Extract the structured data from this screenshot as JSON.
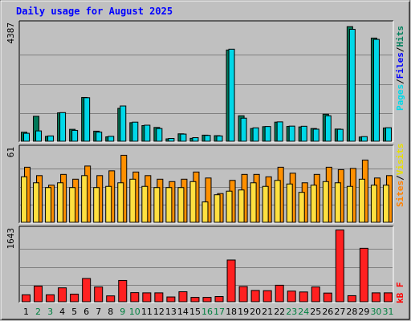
{
  "chart_data": {
    "type": "bar",
    "title": "Daily usage for August 2025",
    "categories": [
      "1",
      "2",
      "3",
      "4",
      "5",
      "6",
      "7",
      "8",
      "9",
      "10",
      "11",
      "12",
      "13",
      "14",
      "15",
      "16",
      "17",
      "18",
      "19",
      "20",
      "21",
      "22",
      "23",
      "24",
      "25",
      "26",
      "27",
      "28",
      "29",
      "30",
      "31"
    ],
    "weekend_days": [
      "2",
      "3",
      "9",
      "10",
      "16",
      "17",
      "23",
      "24",
      "30",
      "31"
    ],
    "colors": {
      "background": "#c0c0c0",
      "title": "#0000ff",
      "pages": "#00805c",
      "files": "#0000ff",
      "hits": "#00805c",
      "hits_bar": "#00d8e8",
      "pages_bar": "#007858",
      "visits": "#e8e000",
      "visits_bar": "#ffe040",
      "sites": "#ff8000",
      "sites_bar": "#ff9000",
      "kb": "#ff0000",
      "kb_bar": "#ff2020",
      "weekday_tick": "#000000",
      "weekend_tick": "#008040"
    },
    "panels": [
      {
        "id": "hits",
        "ymax_label": "4387",
        "ylim": [
          0,
          4387
        ],
        "legend": [
          "Pages",
          "/",
          "Files",
          "/",
          "Hits"
        ],
        "series": [
          {
            "name": "Hits",
            "values": [
              300,
              390,
              200,
              1080,
              410,
              1640,
              345,
              185,
              1330,
              720,
              605,
              480,
              105,
              270,
              135,
              220,
              200,
              3470,
              870,
              505,
              555,
              730,
              570,
              565,
              455,
              960,
              450,
              4220,
              175,
              3840,
              510
            ]
          },
          {
            "name": "Files",
            "values": [
              300,
              370,
              200,
              1030,
              390,
              1600,
              330,
              185,
              1260,
              680,
              580,
              465,
              100,
              255,
              130,
              210,
              195,
              3330,
              830,
              490,
              540,
              700,
              550,
              545,
              440,
              930,
              435,
              4050,
              170,
              3700,
              490
            ]
          },
          {
            "name": "Pages",
            "values": [
              340,
              940,
              185,
              1070,
              450,
              1650,
              380,
              165,
              1240,
              700,
              590,
              520,
              90,
              280,
              110,
              230,
              210,
              3440,
              960,
              480,
              550,
              720,
              560,
              540,
              480,
              1020,
              460,
              4320,
              160,
              3890,
              500
            ]
          }
        ]
      },
      {
        "id": "visits",
        "ymax_label": "61",
        "ylim": [
          0,
          61
        ],
        "legend": [
          "Sites",
          "/",
          "Visits"
        ],
        "series": [
          {
            "name": "Visits",
            "values": [
              38,
              33,
              29,
              33,
              29,
              39,
              29,
              30,
              33,
              36,
              30,
              29,
              29,
              29,
              34,
              17,
              23,
              26,
              27,
              33,
              30,
              35,
              32,
              25,
              31,
              34,
              33,
              30,
              36,
              31,
              31
            ]
          },
          {
            "name": "Sites",
            "values": [
              46,
              39,
              31,
              40,
              36,
              47,
              39,
              43,
              56,
              42,
              39,
              36,
              34,
              36,
              42,
              37,
              24,
              35,
              40,
              40,
              38,
              46,
              41,
              33,
              40,
              46,
              44,
              45,
              52,
              37,
              39
            ]
          }
        ]
      },
      {
        "id": "kb",
        "ymax_label": "1643",
        "ylim": [
          0,
          1643
        ],
        "legend": [
          "kB",
          "F"
        ],
        "series": [
          {
            "name": "kB F",
            "values": [
              160,
              360,
              160,
              320,
              175,
              535,
              340,
              135,
              490,
              210,
              205,
              205,
              110,
              230,
              100,
              100,
              120,
              960,
              350,
              260,
              255,
              380,
              245,
              225,
              340,
              200,
              1650,
              140,
              1230,
              205,
              205
            ]
          }
        ]
      }
    ],
    "grid": true
  }
}
